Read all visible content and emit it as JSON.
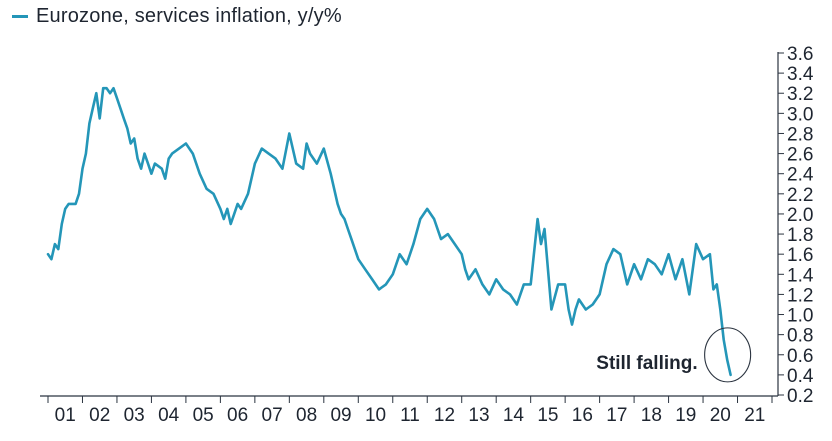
{
  "chart_data": {
    "type": "line",
    "legend": "Eurozone, services inflation, y/y%",
    "series_color": "#2496b8",
    "x_ticks": [
      "01",
      "02",
      "03",
      "04",
      "05",
      "06",
      "07",
      "08",
      "09",
      "10",
      "11",
      "12",
      "13",
      "14",
      "15",
      "16",
      "17",
      "18",
      "19",
      "20",
      "21"
    ],
    "y_ticks": [
      "0.2",
      "0.4",
      "0.6",
      "0.8",
      "1.0",
      "1.2",
      "1.4",
      "1.6",
      "1.8",
      "2.0",
      "2.2",
      "2.4",
      "2.6",
      "2.8",
      "3.0",
      "3.2",
      "3.4",
      "3.6"
    ],
    "xlim": [
      2001.0,
      2022.0
    ],
    "ylim": [
      0.2,
      3.6
    ],
    "annotation": "Still falling.",
    "series": [
      {
        "name": "Eurozone, services inflation, y/y%",
        "x": [
          2001.0,
          2001.1,
          2001.2,
          2001.3,
          2001.4,
          2001.5,
          2001.6,
          2001.8,
          2001.9,
          2002.0,
          2002.1,
          2002.2,
          2002.3,
          2002.4,
          2002.5,
          2002.6,
          2002.7,
          2002.8,
          2002.9,
          2003.0,
          2003.1,
          2003.2,
          2003.3,
          2003.4,
          2003.5,
          2003.6,
          2003.7,
          2003.8,
          2003.9,
          2004.0,
          2004.1,
          2004.3,
          2004.4,
          2004.5,
          2004.6,
          2004.8,
          2005.0,
          2005.2,
          2005.4,
          2005.6,
          2005.8,
          2006.0,
          2006.1,
          2006.2,
          2006.3,
          2006.4,
          2006.5,
          2006.6,
          2006.8,
          2007.0,
          2007.2,
          2007.4,
          2007.6,
          2007.8,
          2008.0,
          2008.2,
          2008.4,
          2008.5,
          2008.6,
          2008.8,
          2009.0,
          2009.2,
          2009.4,
          2009.5,
          2009.6,
          2009.7,
          2009.8,
          2010.0,
          2010.2,
          2010.4,
          2010.6,
          2010.8,
          2011.0,
          2011.2,
          2011.4,
          2011.6,
          2011.8,
          2012.0,
          2012.2,
          2012.4,
          2012.6,
          2012.8,
          2013.0,
          2013.1,
          2013.2,
          2013.3,
          2013.4,
          2013.6,
          2013.8,
          2014.0,
          2014.2,
          2014.4,
          2014.6,
          2014.8,
          2015.0,
          2015.2,
          2015.3,
          2015.4,
          2015.6,
          2015.8,
          2016.0,
          2016.1,
          2016.2,
          2016.3,
          2016.4,
          2016.6,
          2016.8,
          2017.0,
          2017.2,
          2017.4,
          2017.6,
          2017.8,
          2018.0,
          2018.2,
          2018.4,
          2018.6,
          2018.8,
          2019.0,
          2019.2,
          2019.4,
          2019.6,
          2019.8,
          2020.0,
          2020.2,
          2020.3,
          2020.4,
          2020.5,
          2020.6,
          2020.7,
          2020.8
        ],
        "y": [
          1.6,
          1.55,
          1.7,
          1.65,
          1.9,
          2.05,
          2.1,
          2.1,
          2.2,
          2.45,
          2.6,
          2.9,
          3.05,
          3.2,
          2.95,
          3.25,
          3.25,
          3.2,
          3.25,
          3.15,
          3.05,
          2.95,
          2.85,
          2.7,
          2.75,
          2.55,
          2.45,
          2.6,
          2.5,
          2.4,
          2.5,
          2.45,
          2.35,
          2.55,
          2.6,
          2.65,
          2.7,
          2.6,
          2.4,
          2.25,
          2.2,
          2.05,
          1.95,
          2.05,
          1.9,
          2.0,
          2.1,
          2.05,
          2.2,
          2.5,
          2.65,
          2.6,
          2.55,
          2.45,
          2.8,
          2.5,
          2.45,
          2.7,
          2.6,
          2.5,
          2.65,
          2.4,
          2.1,
          2.0,
          1.95,
          1.85,
          1.75,
          1.55,
          1.45,
          1.35,
          1.25,
          1.3,
          1.4,
          1.6,
          1.5,
          1.7,
          1.95,
          2.05,
          1.95,
          1.75,
          1.8,
          1.7,
          1.6,
          1.45,
          1.35,
          1.4,
          1.45,
          1.3,
          1.2,
          1.35,
          1.25,
          1.2,
          1.1,
          1.3,
          1.3,
          1.95,
          1.7,
          1.85,
          1.05,
          1.3,
          1.3,
          1.05,
          0.9,
          1.05,
          1.15,
          1.05,
          1.1,
          1.2,
          1.5,
          1.65,
          1.6,
          1.3,
          1.5,
          1.35,
          1.55,
          1.5,
          1.4,
          1.6,
          1.35,
          1.55,
          1.2,
          1.7,
          1.55,
          1.6,
          1.25,
          1.3,
          1.05,
          0.75,
          0.55,
          0.4
        ]
      }
    ]
  }
}
